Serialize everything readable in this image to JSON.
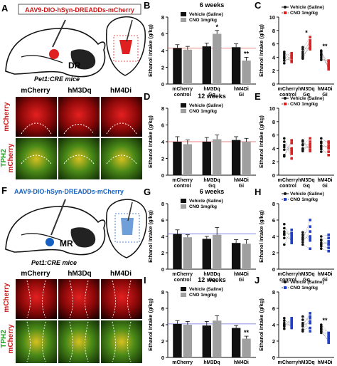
{
  "panels": {
    "A": {
      "letter": "A",
      "construct": "AAV9-DIO-hSyn-DREADDs-mCherry",
      "region": "DR",
      "mice": "Pet1:CRE mice",
      "micro_cols": [
        "mCherry",
        "hM3Dq",
        "hM4Di"
      ],
      "micro_rows": [
        "mCherry",
        "TPH2\nmCherry"
      ]
    },
    "F": {
      "letter": "F",
      "construct": "AAV9-DIO-hSyn-DREADDs-mCherry",
      "region": "MR",
      "mice": "Pet1:CRE mice",
      "micro_cols": [
        "mCherry",
        "hM3Dq",
        "hM4Di"
      ],
      "micro_rows": [
        "mCherry",
        "TPH2\nmCherry"
      ]
    }
  },
  "colors": {
    "vehicle": "#111111",
    "cno_bar": "#a0a0a0",
    "cno_dr": "#e02020",
    "cno_mr": "#1f3fcf",
    "refline_dr": "#e05a5a",
    "refline_mr": "#6f6fe0",
    "construct_dr": "#d01818",
    "construct_mr": "#1560c0"
  },
  "chart_data": [
    {
      "id": "B",
      "type": "bar",
      "title": "6 weeks",
      "ylabel": "Ethanol Intake (g/kg)",
      "ylim": [
        0,
        8
      ],
      "yticks": [
        0,
        2,
        4,
        6,
        8
      ],
      "categories": [
        "mCherry\ncontrol",
        "hM3Dq\nGq",
        "hM4Di\nGi"
      ],
      "legend": [
        "Vehicle (Saline)",
        "CNO 1mg/kg"
      ],
      "series": [
        {
          "name": "Vehicle (Saline)",
          "values": [
            4.3,
            4.5,
            4.4
          ],
          "err": [
            0.4,
            0.4,
            0.4
          ]
        },
        {
          "name": "CNO 1mg/kg",
          "values": [
            4.1,
            6.0,
            2.8
          ],
          "err": [
            0.4,
            0.4,
            0.4
          ]
        }
      ],
      "annotations": [
        "",
        "*",
        "**"
      ],
      "refline": 4.3
    },
    {
      "id": "C",
      "type": "scatter",
      "ylabel": "Ethanol Intake (g/kg)",
      "ylim": [
        0,
        10
      ],
      "yticks": [
        0,
        2,
        4,
        6,
        8,
        10
      ],
      "categories": [
        "mCherry\ncontrol",
        "hM3Dq\nGq",
        "hM4Di\nGi"
      ],
      "legend": [
        "Vehicle (Saline)",
        "CNO 1mg/kg"
      ],
      "series": [
        {
          "name": "Vehicle (Saline)",
          "values": [
            [
              4.5,
              3.8,
              4.2,
              3.5,
              4.8,
              3.1,
              4.0
            ],
            [
              4.8,
              4.2,
              5.2,
              3.8,
              4.5,
              5.5,
              4.0
            ],
            [
              4.8,
              4.2,
              3.6,
              5.0,
              4.5,
              3.9,
              4.4
            ]
          ]
        },
        {
          "name": "CNO 1mg/kg",
          "values": [
            [
              4.2,
              3.5,
              4.6,
              3.9,
              3.3,
              4.4,
              4.0
            ],
            [
              6.2,
              5.5,
              7.0,
              5.8,
              6.5,
              5.2,
              6.0
            ],
            [
              3.0,
              2.5,
              3.5,
              2.2,
              3.2,
              2.8,
              2.6
            ]
          ]
        }
      ],
      "annotations": [
        "",
        "*",
        "**"
      ]
    },
    {
      "id": "D",
      "type": "bar",
      "title": "12 weeks",
      "ylabel": "Ethanol Intake (g/kg)",
      "ylim": [
        0,
        8
      ],
      "yticks": [
        0,
        2,
        4,
        6,
        8
      ],
      "categories": [
        "mCherry\ncontrol",
        "hM3Dq\nGq",
        "hM4Di\nGi"
      ],
      "legend": [
        "Vehicle (Saline)",
        "CNO 1mg/kg"
      ],
      "series": [
        {
          "name": "Vehicle (Saline)",
          "values": [
            4.0,
            4.0,
            4.2
          ],
          "err": [
            0.6,
            0.5,
            0.4
          ]
        },
        {
          "name": "CNO 1mg/kg",
          "values": [
            3.7,
            4.3,
            4.0
          ],
          "err": [
            0.5,
            0.5,
            0.4
          ]
        }
      ],
      "annotations": [
        "",
        "",
        ""
      ],
      "refline": 4.0
    },
    {
      "id": "E",
      "type": "scatter",
      "ylabel": "Ethanol Intake (g/kg)",
      "ylim": [
        0,
        10
      ],
      "yticks": [
        0,
        2,
        4,
        6,
        8,
        10
      ],
      "categories": [
        "mCherry\ncontrol",
        "hM3Dq\nGq",
        "hM4Di\nGi"
      ],
      "legend": [
        "Vehicle (Saline)",
        "CNO 1mg/kg"
      ],
      "series": [
        {
          "name": "Vehicle (Saline)",
          "values": [
            [
              4.5,
              3.0,
              5.5,
              3.8,
              4.2,
              2.8,
              5.0
            ],
            [
              4.6,
              3.8,
              5.2,
              4.0,
              4.5,
              5.0,
              3.6
            ],
            [
              4.8,
              3.5,
              5.0,
              4.2,
              3.9,
              5.5,
              4.4
            ]
          ]
        },
        {
          "name": "CNO 1mg/kg",
          "values": [
            [
              3.5,
              4.8,
              2.5,
              4.0,
              3.2,
              5.2,
              3.8
            ],
            [
              4.5,
              5.0,
              3.8,
              4.2,
              5.5,
              3.6,
              4.6
            ],
            [
              4.0,
              3.5,
              5.0,
              4.4,
              3.0,
              4.8,
              4.1
            ]
          ]
        }
      ],
      "annotations": [
        "",
        "",
        ""
      ]
    },
    {
      "id": "G",
      "type": "bar",
      "title": "6 weeks",
      "ylabel": "Ethanol Intake (g/kg)",
      "ylim": [
        0,
        8
      ],
      "yticks": [
        0,
        2,
        4,
        6,
        8
      ],
      "categories": [
        "mCherry\ncontrol",
        "hM3Dq\nGq",
        "hM4Di\nGi"
      ],
      "legend": [
        "Vehicle (Saline)",
        "CNO 1mg/kg"
      ],
      "series": [
        {
          "name": "Vehicle (Saline)",
          "values": [
            4.3,
            3.7,
            3.2
          ],
          "err": [
            0.5,
            0.3,
            0.4
          ]
        },
        {
          "name": "CNO 1mg/kg",
          "values": [
            3.9,
            4.2,
            3.1
          ],
          "err": [
            0.3,
            0.9,
            0.5
          ]
        }
      ],
      "annotations": [
        "",
        "",
        ""
      ],
      "refline": 4.3
    },
    {
      "id": "H",
      "type": "scatter",
      "ylabel": "Ethanol Intake (g/kg)",
      "ylim": [
        0,
        8
      ],
      "yticks": [
        0,
        2,
        4,
        6,
        8
      ],
      "categories": [
        "mCherry\ncontrol",
        "hM3Dq\nGq",
        "hM4Di\nGi"
      ],
      "legend": [
        "Vehicle (Saline)",
        "CNO 1mg/kg"
      ],
      "series": [
        {
          "name": "Vehicle (Saline)",
          "values": [
            [
              5.0,
              4.2,
              3.0,
              5.5,
              4.6,
              3.8,
              4.4
            ],
            [
              3.6,
              4.2,
              3.0,
              3.9,
              4.5,
              3.3,
              3.7
            ],
            [
              3.5,
              2.5,
              4.0,
              3.0,
              2.8,
              3.6,
              3.2
            ]
          ]
        },
        {
          "name": "CNO 1mg/kg",
          "values": [
            [
              4.2,
              3.5,
              4.8,
              3.2,
              4.0,
              3.8,
              4.4
            ],
            [
              6.0,
              3.5,
              2.5,
              5.2,
              3.8,
              4.6,
              4.0
            ],
            [
              3.0,
              2.2,
              4.2,
              3.4,
              2.6,
              3.8,
              3.1
            ]
          ]
        }
      ],
      "annotations": [
        "",
        "",
        ""
      ]
    },
    {
      "id": "I",
      "type": "bar",
      "title": "12 weeks",
      "ylabel": "Ethanol Intake (g/kg)",
      "ylim": [
        0,
        8
      ],
      "yticks": [
        0,
        2,
        4,
        6,
        8
      ],
      "categories": [
        "mCherry\ncontrol",
        "hM3Dq\nGq",
        "hM4Di\nGi"
      ],
      "legend": [
        "Vehicle (Saline)",
        "CNO 1mg/kg"
      ],
      "series": [
        {
          "name": "Vehicle (Saline)",
          "values": [
            4.1,
            3.9,
            3.6
          ],
          "err": [
            0.4,
            0.5,
            0.3
          ]
        },
        {
          "name": "CNO 1mg/kg",
          "values": [
            4.0,
            4.5,
            2.3
          ],
          "err": [
            0.4,
            0.6,
            0.3
          ]
        }
      ],
      "annotations": [
        "",
        "",
        "**"
      ],
      "refline": 4.1
    },
    {
      "id": "J",
      "type": "scatter",
      "ylabel": "Ethanol Intake (g/kg)",
      "ylim": [
        0,
        8
      ],
      "yticks": [
        0,
        2,
        4,
        6,
        8
      ],
      "categories": [
        "mCherry\ncontrol",
        "hM3Dq\nGq",
        "hM4Di\nGi"
      ],
      "legend": [
        "Vehicle (Saline)",
        "CNO 1mg/kg"
      ],
      "series": [
        {
          "name": "Vehicle (Saline)",
          "values": [
            [
              4.5,
              3.8,
              4.2,
              3.5,
              4.8,
              4.0,
              3.9
            ],
            [
              4.2,
              3.4,
              5.0,
              3.8,
              4.6,
              3.2,
              4.0
            ],
            [
              3.6,
              3.2,
              4.0,
              3.4,
              3.0,
              3.8,
              3.5
            ]
          ]
        },
        {
          "name": "CNO 1mg/kg",
          "values": [
            [
              4.2,
              4.6,
              3.8,
              4.4,
              3.6,
              4.0,
              4.8
            ],
            [
              5.0,
              3.6,
              4.4,
              5.4,
              3.2,
              4.8,
              4.2
            ],
            [
              2.6,
              2.0,
              3.0,
              2.4,
              2.2,
              2.8,
              1.8
            ]
          ]
        }
      ],
      "annotations": [
        "",
        "",
        "**"
      ]
    }
  ]
}
